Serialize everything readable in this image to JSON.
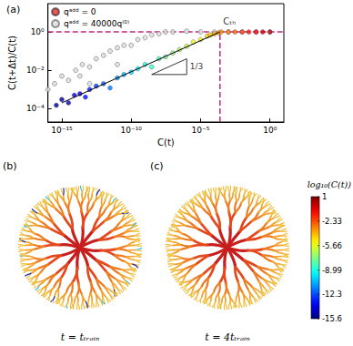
{
  "chart_data": {
    "type": "scatter",
    "panel_label": "(a)",
    "x_label": "C(t)",
    "y_label": "C(t+Δt)/C(t)",
    "log": true,
    "grid": false,
    "legend": "top-left",
    "xlim": [
      1e-16,
      10
    ],
    "ylim": [
      2e-05,
      30
    ],
    "xticks": [
      {
        "value": 1e-15,
        "label": "10⁻¹⁵"
      },
      {
        "value": 1e-10,
        "label": "10⁻¹⁰"
      },
      {
        "value": 1e-05,
        "label": "10⁻⁵"
      },
      {
        "value": 1,
        "label": "10⁰"
      }
    ],
    "yticks": [
      {
        "value": 0.0001,
        "label": "10⁻⁴"
      },
      {
        "value": 0.01,
        "label": "10⁻²"
      },
      {
        "value": 1,
        "label": "10⁰"
      }
    ],
    "series": [
      {
        "name": "qᵃᵈᵈ = 0",
        "color": "#e0321e",
        "marker": "circle",
        "x": [
          4e-16,
          1e-15,
          3e-15,
          8e-15,
          2e-14,
          5e-14,
          1e-13,
          3e-13,
          1e-12,
          3e-12,
          1e-11,
          3e-11,
          1e-10,
          3e-10,
          1e-09,
          3e-09,
          1e-08,
          3e-08,
          1e-07,
          3e-07,
          1e-06,
          3e-06,
          1e-05,
          3e-05,
          5e-05,
          0.0001,
          0.0002,
          0.0003,
          0.001,
          0.003,
          0.01,
          0.03,
          0.1,
          0.3,
          1
        ],
        "values": [
          0.00015,
          0.0003,
          0.0002,
          0.0005,
          0.0006,
          0.0004,
          0.001,
          0.0015,
          0.002,
          0.0012,
          0.004,
          0.006,
          0.008,
          0.012,
          0.02,
          0.015,
          0.04,
          0.05,
          0.08,
          0.12,
          0.18,
          0.3,
          0.4,
          0.6,
          0.7,
          0.8,
          0.9,
          1,
          1,
          1,
          1,
          1,
          1,
          1,
          1
        ]
      },
      {
        "name": "qᵃᵈᵈ = 40000q⁽⁰⁾",
        "color": "#7a7a7a",
        "marker": "open_circle",
        "x": [
          1e-16,
          3e-16,
          1e-15,
          3e-15,
          1e-14,
          2e-14,
          3e-14,
          1e-13,
          1e-13,
          3e-13,
          1e-12,
          3e-12,
          1e-11,
          1e-11,
          3e-11,
          1e-10,
          3e-10,
          1e-09,
          3e-09,
          1e-08,
          3e-08,
          1e-07,
          1e-06,
          1e-05,
          0.0001,
          0.001,
          0.01,
          0.1,
          1
        ],
        "values": [
          0.001,
          0.002,
          0.005,
          0.003,
          0.01,
          0.005,
          0.02,
          0.015,
          0.002,
          0.04,
          0.06,
          0.1,
          0.15,
          0.02,
          0.2,
          0.2,
          0.4,
          0.5,
          0.7,
          0.8,
          1,
          1,
          1.1,
          1,
          1,
          1,
          1,
          1,
          1
        ]
      }
    ],
    "reference_line": {
      "x": [
        1e-15,
        0.00025
      ],
      "values": [
        0.0002,
        1
      ],
      "color": "#000000",
      "line_style": "solid"
    },
    "slope_triangle": {
      "x": [
        3e-09,
        1e-06,
        1e-06,
        3e-09
      ],
      "values": [
        0.006,
        0.006,
        0.04,
        0.006
      ],
      "label": "1/3",
      "label_x": 1e-06,
      "label_y": 0.015,
      "color": "#000000"
    },
    "threshold": {
      "label": "Cₜₕ",
      "x": 0.00025,
      "y": 1,
      "color": "#c02a7a",
      "line_style": "dashed"
    }
  },
  "panels": [
    {
      "label": "(b)",
      "caption": "t = tₜᵣₐᵢₙ"
    },
    {
      "label": "(c)",
      "caption": "t = 4tₜᵣₐᵢₙ"
    }
  ],
  "colorbar": {
    "title": "log₁₀(C(t))",
    "range": [
      -15.6,
      1
    ],
    "ticks": [
      1,
      -2.33,
      -5.66,
      -8.99,
      -12.3,
      -15.6
    ]
  }
}
